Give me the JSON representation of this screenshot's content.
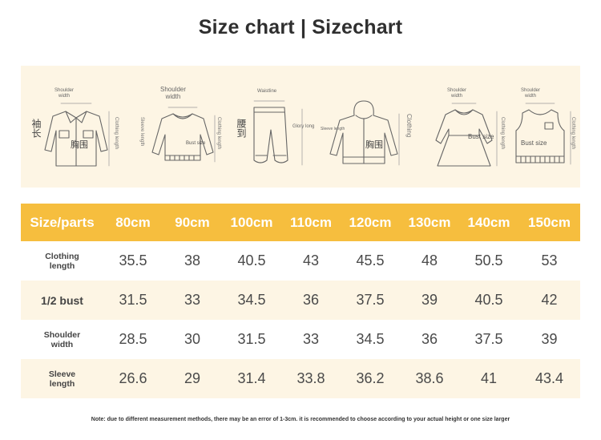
{
  "title": "Size chart | Sizechart",
  "illustrations": {
    "jacket": {
      "top": "Shoulder\nwidth",
      "side": "Clothing length",
      "left_cn": "袖长",
      "body_cn": "胸围"
    },
    "sweater": {
      "top": "Shoulder\nwidth",
      "side": "Clothing length",
      "left": "Sleeve length",
      "body": "Bust size"
    },
    "pants": {
      "top": "Waistline",
      "left_cn": "腰到",
      "right": "Glory long"
    },
    "hoodie": {
      "left": "Sleeve length",
      "right": "Clothing",
      "body_cn": "胸围"
    },
    "dress": {
      "top": "Shoulder\nwidth",
      "right": "Clothing length",
      "body": "Bust size"
    },
    "vest": {
      "top": "Shoulder\nwidth",
      "right": "Clothing length",
      "body": "Bust size"
    }
  },
  "table": {
    "header_label": "Size/parts",
    "sizes": [
      "80cm",
      "90cm",
      "100cm",
      "110cm",
      "120cm",
      "130cm",
      "140cm",
      "150cm"
    ],
    "rows": [
      {
        "label_line1": "Clothing",
        "label_line2": "length",
        "values": [
          "35.5",
          "38",
          "40.5",
          "43",
          "45.5",
          "48",
          "50.5",
          "53"
        ]
      },
      {
        "label_line1": "1/2 bust",
        "label_line2": "",
        "values": [
          "31.5",
          "33",
          "34.5",
          "36",
          "37.5",
          "39",
          "40.5",
          "42"
        ]
      },
      {
        "label_line1": "Shoulder",
        "label_line2": "width",
        "values": [
          "28.5",
          "30",
          "31.5",
          "33",
          "34.5",
          "36",
          "37.5",
          "39"
        ]
      },
      {
        "label_line1": "Sleeve",
        "label_line2": "length",
        "values": [
          "26.6",
          "29",
          "31.4",
          "33.8",
          "36.2",
          "38.6",
          "41",
          "43.4"
        ]
      }
    ]
  },
  "note": "Note: due to different measurement methods, there may be an error of 1-3cm. it is recommended to choose according to your actual height or one size larger",
  "colors": {
    "header_bg": "#f6be3e",
    "stripe_bg": "#fdf5e4",
    "text": "#4a4a4a"
  }
}
